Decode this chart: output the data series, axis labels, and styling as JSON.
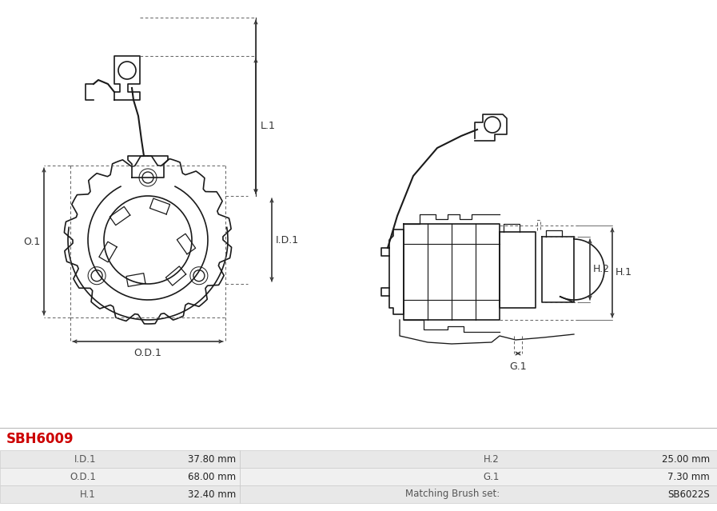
{
  "title": "SBH6009",
  "title_color": "#cc0000",
  "bg_color": "#ffffff",
  "table": {
    "rows": [
      {
        "label": "I.D.1",
        "value": "37.80 mm",
        "label2": "H.2",
        "value2": "25.00 mm"
      },
      {
        "label": "O.D.1",
        "value": "68.00 mm",
        "label2": "G.1",
        "value2": "7.30 mm"
      },
      {
        "label": "H.1",
        "value": "32.40 mm",
        "label2": "Matching Brush set:",
        "value2": "SB6022S"
      }
    ],
    "row_colors": [
      "#e8e8e8",
      "#f0f0f0",
      "#e8e8e8"
    ]
  },
  "lc": "#1a1a1a",
  "dc": "#555555",
  "dim_c": "#333333",
  "lw": 1.2,
  "dlw": 0.7,
  "label_fontsize": 9,
  "table_fontsize": 8.5
}
